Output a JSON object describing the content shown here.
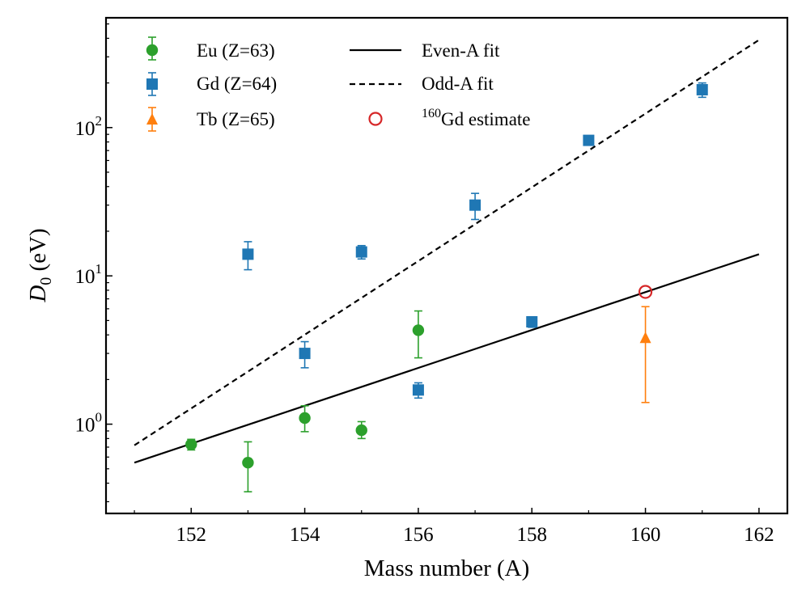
{
  "chart_data": {
    "type": "scatter",
    "xlabel": "Mass number (A)",
    "ylabel": "D0 (eV)",
    "ylabel_main": "D",
    "ylabel_sub": "0",
    "ylabel_unit": " (eV)",
    "xlim": [
      150.5,
      162.5
    ],
    "ylim": [
      0.25,
      550
    ],
    "yscale": "log",
    "grid": false,
    "legend_position": "top-left",
    "x_ticks": [
      152,
      154,
      156,
      158,
      160,
      162
    ],
    "x_tick_labels": [
      "152",
      "154",
      "156",
      "158",
      "160",
      "162"
    ],
    "y_ticks": [
      {
        "value": 1,
        "base": "10",
        "exp": "0"
      },
      {
        "value": 10,
        "base": "10",
        "exp": "1"
      },
      {
        "value": 100,
        "base": "10",
        "exp": "2"
      }
    ],
    "series": [
      {
        "name": "Eu (Z=63)",
        "kind": "points",
        "marker": "circle",
        "color": "#2ca02c",
        "points": [
          {
            "x": 152,
            "y": 0.73,
            "err_lo": 0.67,
            "err_hi": 0.79
          },
          {
            "x": 153,
            "y": 0.55,
            "err_lo": 0.35,
            "err_hi": 0.76
          },
          {
            "x": 154,
            "y": 1.1,
            "err_lo": 0.89,
            "err_hi": 1.33
          },
          {
            "x": 155,
            "y": 0.91,
            "err_lo": 0.8,
            "err_hi": 1.04
          },
          {
            "x": 156,
            "y": 4.3,
            "err_lo": 2.8,
            "err_hi": 5.8
          }
        ]
      },
      {
        "name": "Gd (Z=64)",
        "kind": "points",
        "marker": "square",
        "color": "#1f77b4",
        "points": [
          {
            "x": 153,
            "y": 14,
            "err_lo": 11,
            "err_hi": 17
          },
          {
            "x": 154,
            "y": 3.0,
            "err_lo": 2.4,
            "err_hi": 3.6
          },
          {
            "x": 155,
            "y": 14.5,
            "err_lo": 13,
            "err_hi": 16
          },
          {
            "x": 156,
            "y": 1.7,
            "err_lo": 1.5,
            "err_hi": 1.9
          },
          {
            "x": 157,
            "y": 30,
            "err_lo": 24,
            "err_hi": 36
          },
          {
            "x": 158,
            "y": 4.9,
            "err_lo": 4.5,
            "err_hi": 5.3
          },
          {
            "x": 159,
            "y": 82,
            "err_lo": 78,
            "err_hi": 86
          },
          {
            "x": 161,
            "y": 180,
            "err_lo": 160,
            "err_hi": 200
          }
        ]
      },
      {
        "name": "Tb (Z=65)",
        "kind": "points",
        "marker": "triangle",
        "color": "#ff7f0e",
        "points": [
          {
            "x": 160,
            "y": 3.8,
            "err_lo": 1.4,
            "err_hi": 6.2
          }
        ]
      },
      {
        "name": "Even-A fit",
        "kind": "line",
        "dash": "solid",
        "color": "#000000",
        "points": [
          {
            "x": 151,
            "y": 0.55
          },
          {
            "x": 162,
            "y": 14
          }
        ]
      },
      {
        "name": "Odd-A fit",
        "kind": "line",
        "dash": "dashed",
        "color": "#000000",
        "points": [
          {
            "x": 151,
            "y": 0.72
          },
          {
            "x": 162,
            "y": 390
          }
        ]
      },
      {
        "name": "160Gd estimate",
        "kind": "points",
        "marker": "open-circle",
        "color": "#d62728",
        "points": [
          {
            "x": 160,
            "y": 7.8
          }
        ]
      }
    ],
    "legend": [
      {
        "label": "Eu (Z=63)",
        "series": 0
      },
      {
        "label": "Gd (Z=64)",
        "series": 1
      },
      {
        "label": "Tb (Z=65)",
        "series": 2
      },
      {
        "label": "Even-A fit",
        "series": 3
      },
      {
        "label": "Odd-A fit",
        "series": 4
      },
      {
        "label": "160Gd estimate",
        "label_sup": "160",
        "label_rest": "Gd estimate",
        "series": 5
      }
    ]
  }
}
